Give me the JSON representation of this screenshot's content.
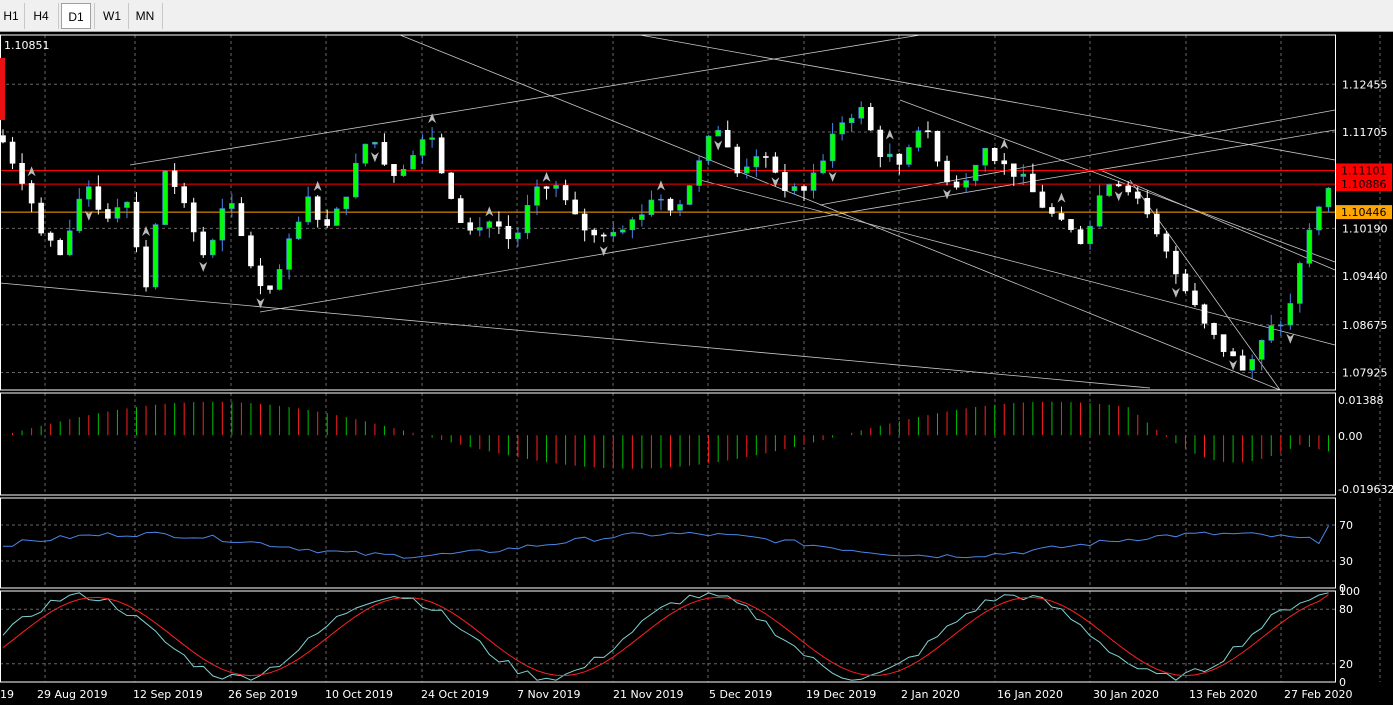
{
  "timeframes": [
    {
      "label": "H1",
      "active": false
    },
    {
      "label": "H4",
      "active": false
    },
    {
      "label": "D1",
      "active": true
    },
    {
      "label": "W1",
      "active": false
    },
    {
      "label": "MN",
      "active": false
    }
  ],
  "chart_data": {
    "type": "candlestick",
    "bid_readout": "1.10851",
    "price_scale": [
      "1.12455",
      "1.11705",
      "1.10190",
      "1.09440",
      "1.08675",
      "1.07925"
    ],
    "price_labels": [
      {
        "text": "1.11101",
        "value": 1.11101,
        "color": "#ff0000"
      },
      {
        "text": "1.10886",
        "value": 1.10886,
        "color": "#ff0000"
      },
      {
        "text": "1.10446",
        "value": 1.10446,
        "color": "#ffa500"
      }
    ],
    "horizontal_lines": [
      {
        "value": 1.11101,
        "color": "#ff0000"
      },
      {
        "value": 1.10886,
        "color": "#ff0000"
      },
      {
        "value": 1.10446,
        "color": "#ffa500"
      }
    ],
    "ylim": [
      1.0765,
      1.1323
    ],
    "date_labels": [
      "19",
      "29 Aug 2019",
      "12 Sep 2019",
      "26 Sep 2019",
      "10 Oct 2019",
      "24 Oct 2019",
      "7 Nov 2019",
      "21 Nov 2019",
      "5 Dec 2019",
      "19 Dec 2019",
      "2 Jan 2020",
      "16 Jan 2020",
      "30 Jan 2020",
      "13 Feb 2020",
      "27 Feb 2020"
    ],
    "anchors": [
      1.1155,
      1.1095,
      1.101,
      1.097,
      1.11,
      1.1035,
      1.1075,
      1.093,
      1.112,
      1.104,
      1.0965,
      1.107,
      1.0975,
      1.0905,
      1.099,
      1.1065,
      1.1015,
      1.109,
      1.117,
      1.1105,
      1.113,
      1.117,
      1.1055,
      1.101,
      1.1035,
      1.0995,
      1.107,
      1.109,
      1.1035,
      1.1005,
      1.1025,
      1.103,
      1.1075,
      1.105,
      1.111,
      1.1185,
      1.1105,
      1.114,
      1.1095,
      1.107,
      1.1115,
      1.1185,
      1.121,
      1.114,
      1.112,
      1.119,
      1.111,
      1.1075,
      1.115,
      1.1125,
      1.1095,
      1.1055,
      1.102,
      1.1,
      1.109,
      1.1095,
      1.104,
      1.098,
      1.092,
      1.086,
      1.0825,
      1.079,
      1.0855,
      1.088,
      1.101,
      1.1085
    ],
    "macd_histogram": {
      "scale_labels": [
        "0.01388",
        "0.00",
        "-0.019632"
      ],
      "range": [
        -0.019632,
        0.01388
      ]
    },
    "rsi": {
      "scale_labels": [
        "70",
        "30",
        "0"
      ],
      "levels": [
        70,
        30
      ],
      "range": [
        0,
        100
      ],
      "color": "#4a86e8",
      "last_value": 69
    },
    "stochastic": {
      "scale_labels": [
        "100",
        "80",
        "20",
        "0"
      ],
      "levels": [
        80,
        20
      ],
      "range": [
        0,
        100
      ],
      "main_color": "#7fd3d0",
      "signal_color": "#ff2020",
      "last_main": 98,
      "last_signal": 96
    },
    "colors": {
      "bull": "#ffffff",
      "bull_body": "#00ff00",
      "bear_body": "#ffffff",
      "wick_bull": "#4a86e8",
      "wick_bear": "#ffffff",
      "grid": "#666666",
      "hist_pos": "#00c000",
      "hist_neg": "#ff2020"
    }
  }
}
